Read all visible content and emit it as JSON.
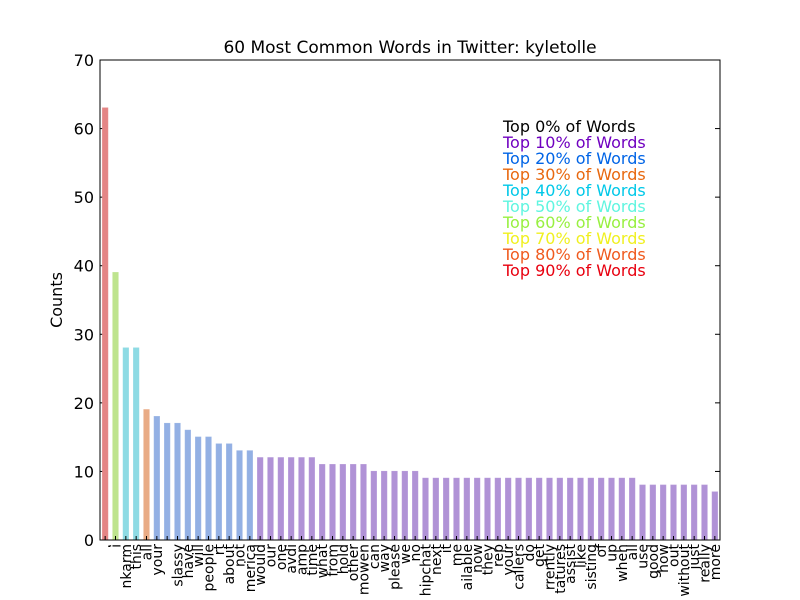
{
  "chart_data": {
    "type": "bar",
    "title": "60 Most Common Words in Twitter: kyletolle",
    "ylabel": "Counts",
    "categories": [
      ".",
      "i",
      "nkarm",
      "this",
      "all",
      "your",
      null,
      "slassy",
      "have",
      "will",
      "people",
      "rt",
      "about",
      "not",
      "merica",
      "would",
      "our",
      "one",
      "avdi",
      "amp",
      "time",
      "what",
      "from",
      "hold",
      "other",
      "mowen",
      "can",
      "way",
      "please",
      "we",
      "no",
      "hipchat",
      "next",
      "it",
      "me",
      "ailable",
      "now",
      "they",
      "rep",
      "your",
      "callers",
      "do",
      "get",
      "rrently",
      "tatures",
      "assist",
      "like",
      "sisting",
      "of",
      "up",
      "when",
      "all",
      "use",
      "good",
      "how",
      "out",
      "without",
      "just",
      "really",
      "more"
    ],
    "values": [
      63,
      39,
      28,
      28,
      19,
      18,
      17,
      17,
      16,
      15,
      15,
      14,
      14,
      13,
      13,
      12,
      12,
      12,
      12,
      12,
      12,
      11,
      11,
      11,
      11,
      11,
      10,
      10,
      10,
      10,
      10,
      9,
      9,
      9,
      9,
      9,
      9,
      9,
      9,
      9,
      9,
      9,
      9,
      9,
      9,
      9,
      9,
      9,
      9,
      9,
      9,
      9,
      8,
      8,
      8,
      8,
      8,
      8,
      8,
      7
    ],
    "colors": [
      "#f08c8c",
      "#c8f096",
      "#96e6f0",
      "#96e6f0",
      "#f5b48c",
      "#9bb9f0",
      "#9bb9f0",
      "#9bb9f0",
      "#9bb9f0",
      "#9bb9f0",
      "#9bb9f0",
      "#9bb9f0",
      "#9bb9f0",
      "#9bb9f0",
      "#9bb9f0",
      "#b99ae1",
      "#b99ae1",
      "#b99ae1",
      "#b99ae1",
      "#b99ae1",
      "#b99ae1",
      "#b99ae1",
      "#b99ae1",
      "#b99ae1",
      "#b99ae1",
      "#b99ae1",
      "#b99ae1",
      "#b99ae1",
      "#b99ae1",
      "#b99ae1",
      "#b99ae1",
      "#b99ae1",
      "#b99ae1",
      "#b99ae1",
      "#b99ae1",
      "#b99ae1",
      "#b99ae1",
      "#b99ae1",
      "#b99ae1",
      "#b99ae1",
      "#b99ae1",
      "#b99ae1",
      "#b99ae1",
      "#b99ae1",
      "#b99ae1",
      "#b99ae1",
      "#b99ae1",
      "#b99ae1",
      "#b99ae1",
      "#b99ae1",
      "#b99ae1",
      "#b99ae1",
      "#b99ae1",
      "#b99ae1",
      "#b99ae1",
      "#b99ae1",
      "#b99ae1",
      "#b99ae1",
      "#b99ae1",
      "#b99ae1"
    ],
    "ylim": [
      0,
      70
    ],
    "yticks": [
      0,
      10,
      20,
      30,
      40,
      50,
      60,
      70
    ],
    "annotations": [
      {
        "text": "Top 0% of Words",
        "color": "#000000"
      },
      {
        "text": "Top 10% of Words",
        "color": "#7000c0"
      },
      {
        "text": "Top 20% of Words",
        "color": "#0064e6"
      },
      {
        "text": "Top 30% of Words",
        "color": "#e8680f"
      },
      {
        "text": "Top 40% of Words",
        "color": "#00c8e8"
      },
      {
        "text": "Top 50% of Words",
        "color": "#60f5e0"
      },
      {
        "text": "Top 60% of Words",
        "color": "#98f040"
      },
      {
        "text": "Top 70% of Words",
        "color": "#f0f020"
      },
      {
        "text": "Top 80% of Words",
        "color": "#f05a1e"
      },
      {
        "text": "Top 90% of Words",
        "color": "#e8000f"
      }
    ]
  }
}
